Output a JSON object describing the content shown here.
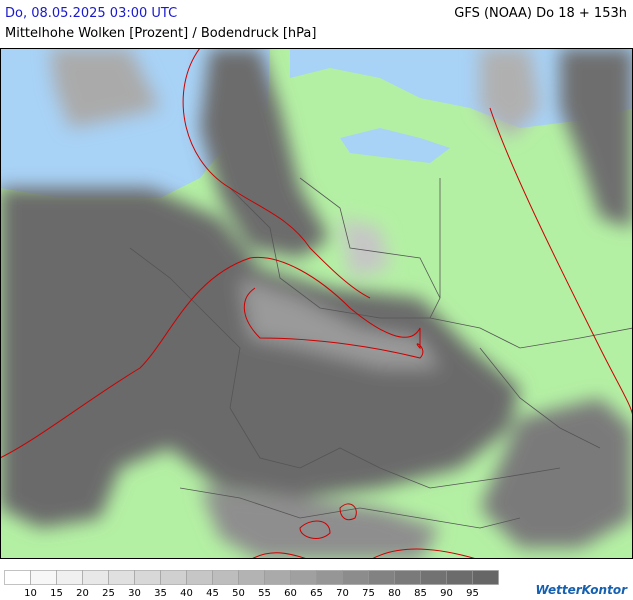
{
  "header": {
    "left": "Do, 08.05.2025 03:00 UTC",
    "right": "GFS (NOAA) Do 18 + 153h",
    "subtitle": "Mittelhohe Wolken [Prozent] / Bodendruck [hPa]"
  },
  "legend": {
    "labels": [
      10,
      15,
      20,
      25,
      30,
      35,
      40,
      45,
      50,
      55,
      60,
      65,
      70,
      75,
      80,
      85,
      90,
      95
    ],
    "colors": [
      "#ffffff",
      "#f7f7f7",
      "#f0f0f0",
      "#e8e8e8",
      "#e0e0e0",
      "#d8d8d8",
      "#d0d0d0",
      "#c6c6c6",
      "#bdbdbd",
      "#b3b3b3",
      "#aaaaaa",
      "#a0a0a0",
      "#969696",
      "#8c8c8c",
      "#828282",
      "#7a7a7a",
      "#727272",
      "#6c6c6c",
      "#666666"
    ]
  },
  "logo": "WetterKontor"
}
